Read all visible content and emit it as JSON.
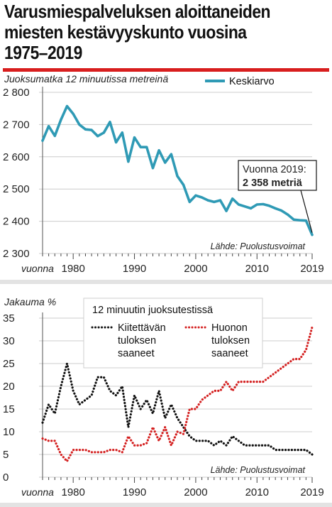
{
  "title_lines": [
    "Varusmiespalveluksen aloittaneiden",
    "miesten kestävyyskunto vuosina",
    "1975–2019"
  ],
  "colors": {
    "accent_red": "#d81e1e",
    "line": "#2f9ab5",
    "dots_black": "#111111",
    "dots_red": "#d42020"
  },
  "chart_data": [
    {
      "type": "line",
      "ylabel": "Juoksumatka 12 minuutissa metreinä",
      "ylim": [
        2300,
        2800
      ],
      "yticks": [
        2300,
        2400,
        2500,
        2600,
        2700,
        2800
      ],
      "ytick_labels": [
        "2 300",
        "2 400",
        "2 500",
        "2 600",
        "2 700",
        "2 800"
      ],
      "xlim": [
        1975,
        2019
      ],
      "xticks": [
        1980,
        1990,
        2000,
        2010,
        2019
      ],
      "x_prefix": "vuonna",
      "grid": true,
      "legend": "top-right",
      "source": "Lähde: Puolustusvoimat",
      "annotation": {
        "line1": "Vuonna 2019:",
        "line2": "2 358 metriä",
        "x": 2019,
        "y": 2358
      },
      "series": [
        {
          "name": "Keskiarvo",
          "x": [
            1975,
            1976,
            1977,
            1978,
            1979,
            1980,
            1981,
            1982,
            1983,
            1984,
            1985,
            1986,
            1987,
            1988,
            1989,
            1990,
            1991,
            1992,
            1993,
            1994,
            1995,
            1996,
            1997,
            1998,
            1999,
            2000,
            2001,
            2002,
            2003,
            2004,
            2005,
            2006,
            2007,
            2008,
            2009,
            2010,
            2011,
            2012,
            2013,
            2014,
            2015,
            2016,
            2017,
            2018,
            2019
          ],
          "values": [
            2650,
            2695,
            2665,
            2715,
            2757,
            2733,
            2700,
            2685,
            2683,
            2664,
            2675,
            2708,
            2645,
            2675,
            2585,
            2660,
            2630,
            2630,
            2565,
            2620,
            2582,
            2608,
            2540,
            2513,
            2460,
            2480,
            2474,
            2465,
            2460,
            2465,
            2432,
            2470,
            2452,
            2446,
            2440,
            2452,
            2453,
            2448,
            2440,
            2433,
            2421,
            2405,
            2403,
            2402,
            2358
          ]
        }
      ]
    },
    {
      "type": "scatter",
      "ylabel": "Jakauma %",
      "ylim": [
        0,
        35
      ],
      "yticks": [
        0,
        5,
        10,
        15,
        20,
        25,
        30,
        35
      ],
      "xlim": [
        1975,
        2019
      ],
      "xticks": [
        1980,
        1990,
        2000,
        2010,
        2019
      ],
      "x_prefix": "vuonna",
      "grid": true,
      "legend": "top-right",
      "legend_title": "12 minuutin juoksutestissä",
      "source": "Lähde: Puolustusvoimat",
      "series": [
        {
          "name": "Kiitettävän tuloksen saaneet",
          "name_lines": [
            "Kiitettävän",
            "tuloksen",
            "saaneet"
          ],
          "x": [
            1975,
            1976,
            1977,
            1978,
            1979,
            1980,
            1981,
            1982,
            1983,
            1984,
            1985,
            1986,
            1987,
            1988,
            1989,
            1990,
            1991,
            1992,
            1993,
            1994,
            1995,
            1996,
            1997,
            1998,
            1999,
            2000,
            2001,
            2002,
            2003,
            2004,
            2005,
            2006,
            2007,
            2008,
            2009,
            2010,
            2011,
            2012,
            2013,
            2014,
            2015,
            2016,
            2017,
            2018,
            2019
          ],
          "values": [
            12,
            16,
            14,
            20,
            25,
            19,
            16,
            17,
            18,
            22,
            22,
            19,
            18,
            20,
            11,
            18,
            15,
            17,
            14,
            19,
            13,
            16,
            13,
            11,
            9,
            8,
            8,
            8,
            7,
            8,
            7,
            9,
            8,
            7,
            7,
            7,
            7,
            7,
            6,
            6,
            6,
            6,
            6,
            6,
            5
          ]
        },
        {
          "name": "Huonon tuloksen saaneet",
          "name_lines": [
            "Huonon",
            "tuloksen",
            "saaneet"
          ],
          "x": [
            1975,
            1976,
            1977,
            1978,
            1979,
            1980,
            1981,
            1982,
            1983,
            1984,
            1985,
            1986,
            1987,
            1988,
            1989,
            1990,
            1991,
            1992,
            1993,
            1994,
            1995,
            1996,
            1997,
            1998,
            1999,
            2000,
            2001,
            2002,
            2003,
            2004,
            2005,
            2006,
            2007,
            2008,
            2009,
            2010,
            2011,
            2012,
            2013,
            2014,
            2015,
            2016,
            2017,
            2018,
            2019
          ],
          "values": [
            8.5,
            8,
            8,
            5,
            3.5,
            6,
            6,
            6,
            5.5,
            5.5,
            5.5,
            6,
            6,
            5.5,
            9,
            7,
            7,
            7.5,
            11,
            8,
            11,
            7,
            10,
            9.5,
            15,
            15,
            17,
            18,
            19,
            19,
            21,
            19,
            21,
            21,
            21,
            21,
            21,
            22,
            23,
            24,
            25,
            26,
            26,
            28,
            33
          ]
        }
      ]
    }
  ]
}
